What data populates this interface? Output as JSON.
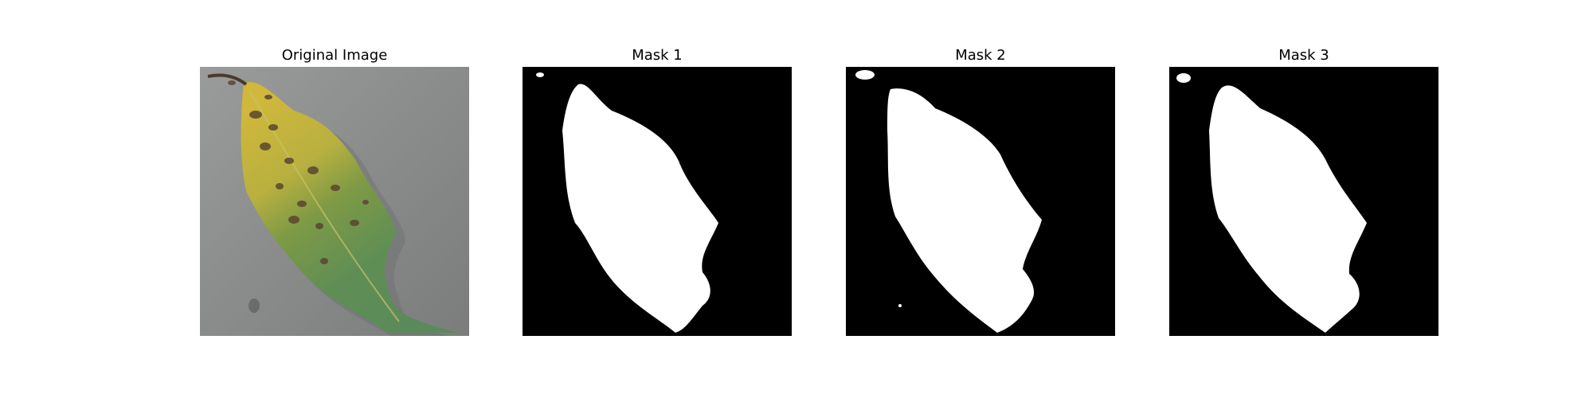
{
  "figure": {
    "panels": [
      {
        "title": "Original Image"
      },
      {
        "title": "Mask 1"
      },
      {
        "title": "Mask 2"
      },
      {
        "title": "Mask 3"
      }
    ],
    "colors": {
      "background": "#ffffff",
      "mask_background": "#000000",
      "mask_foreground": "#ffffff",
      "photo_backdrop": "#8b8d8c",
      "leaf_green": "#5f8f52",
      "leaf_yellow": "#c8b53a",
      "spot_brown": "#5a4630"
    }
  }
}
